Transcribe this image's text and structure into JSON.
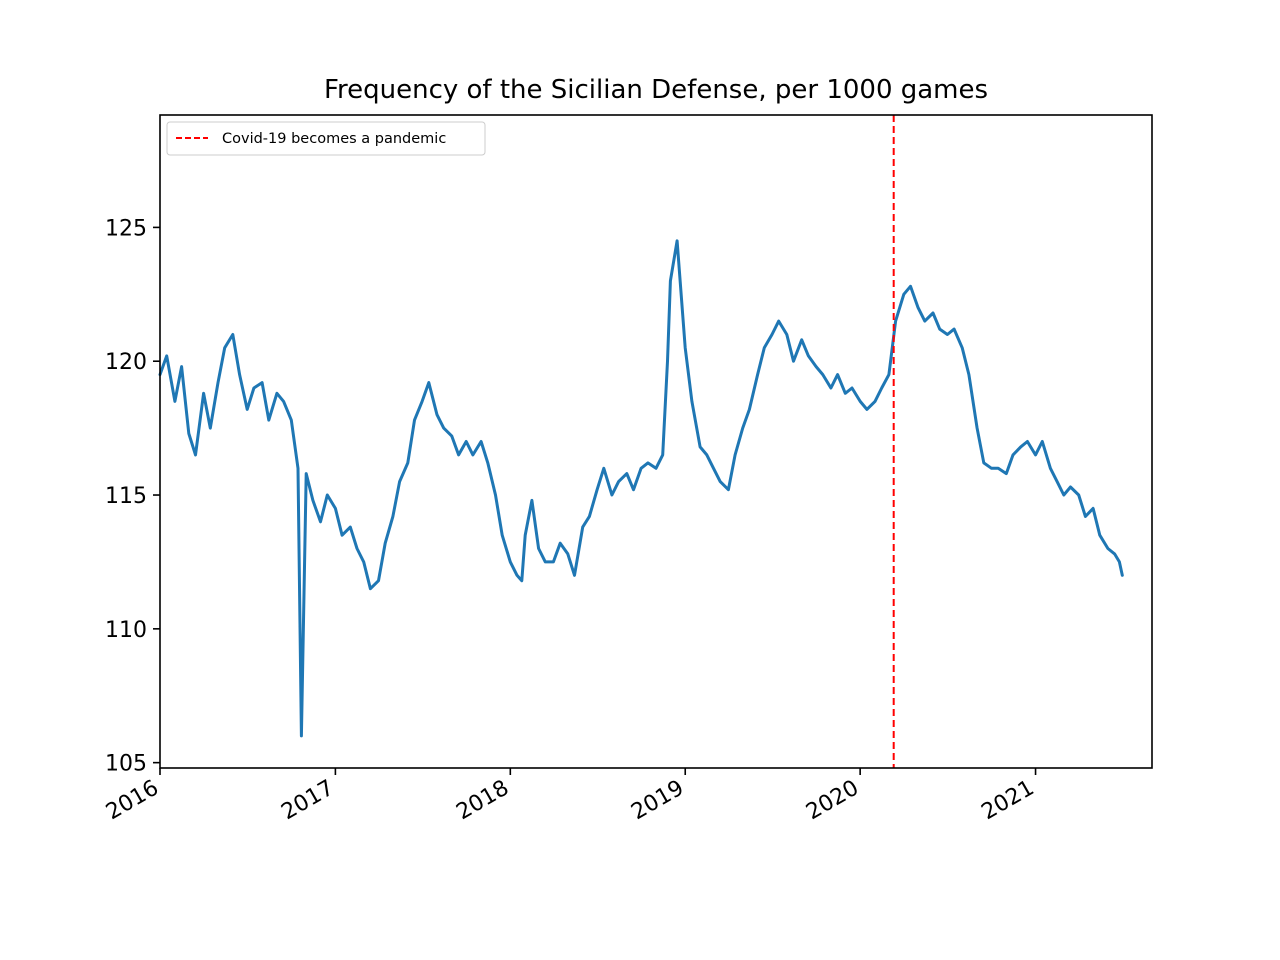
{
  "chart_data": {
    "type": "line",
    "title": "Frequency of the Sicilian Defense, per 1000 games",
    "xlabel": "",
    "ylabel": "",
    "x_axis": "date",
    "x_range": [
      "2016-01-01",
      "2021-09-01"
    ],
    "ylim": [
      104.8,
      129.2
    ],
    "grid": false,
    "legend_position": "top-left",
    "x_ticks": [
      {
        "label": "2016",
        "value": "2016-01-01"
      },
      {
        "label": "2017",
        "value": "2017-01-01"
      },
      {
        "label": "2018",
        "value": "2018-01-01"
      },
      {
        "label": "2019",
        "value": "2019-01-01"
      },
      {
        "label": "2020",
        "value": "2020-01-01"
      },
      {
        "label": "2021",
        "value": "2021-01-01"
      }
    ],
    "y_ticks": [
      105,
      110,
      115,
      120,
      125
    ],
    "annotation": {
      "type": "vline",
      "x": "2020-03-11",
      "label": "Covid-19 becomes a pandemic",
      "color": "#ff0000",
      "style": "dashed"
    },
    "series": [
      {
        "color": "#1f77b4",
        "x": [
          "2016-01-01",
          "2016-01-15",
          "2016-02-01",
          "2016-02-15",
          "2016-03-01",
          "2016-03-15",
          "2016-04-01",
          "2016-04-15",
          "2016-05-01",
          "2016-05-15",
          "2016-06-01",
          "2016-06-15",
          "2016-07-01",
          "2016-07-15",
          "2016-08-01",
          "2016-08-15",
          "2016-09-01",
          "2016-09-15",
          "2016-10-01",
          "2016-10-15",
          "2016-10-22",
          "2016-11-01",
          "2016-11-15",
          "2016-12-01",
          "2016-12-15",
          "2017-01-01",
          "2017-01-15",
          "2017-02-01",
          "2017-02-15",
          "2017-03-01",
          "2017-03-15",
          "2017-04-01",
          "2017-04-15",
          "2017-05-01",
          "2017-05-15",
          "2017-06-01",
          "2017-06-15",
          "2017-07-01",
          "2017-07-15",
          "2017-08-01",
          "2017-08-15",
          "2017-09-01",
          "2017-09-15",
          "2017-10-01",
          "2017-10-15",
          "2017-11-01",
          "2017-11-15",
          "2017-12-01",
          "2017-12-15",
          "2018-01-01",
          "2018-01-15",
          "2018-01-25",
          "2018-02-01",
          "2018-02-15",
          "2018-03-01",
          "2018-03-15",
          "2018-04-01",
          "2018-04-15",
          "2018-05-01",
          "2018-05-15",
          "2018-06-01",
          "2018-06-15",
          "2018-07-01",
          "2018-07-15",
          "2018-08-01",
          "2018-08-15",
          "2018-09-01",
          "2018-09-15",
          "2018-10-01",
          "2018-10-15",
          "2018-11-01",
          "2018-11-15",
          "2018-11-25",
          "2018-12-01",
          "2018-12-15",
          "2019-01-01",
          "2019-01-15",
          "2019-02-01",
          "2019-02-15",
          "2019-03-01",
          "2019-03-15",
          "2019-04-01",
          "2019-04-15",
          "2019-05-01",
          "2019-05-15",
          "2019-06-01",
          "2019-06-15",
          "2019-07-01",
          "2019-07-15",
          "2019-08-01",
          "2019-08-15",
          "2019-09-01",
          "2019-09-15",
          "2019-10-01",
          "2019-10-15",
          "2019-11-01",
          "2019-11-15",
          "2019-12-01",
          "2019-12-15",
          "2020-01-01",
          "2020-01-15",
          "2020-02-01",
          "2020-02-15",
          "2020-03-01",
          "2020-03-15",
          "2020-04-01",
          "2020-04-15",
          "2020-05-01",
          "2020-05-15",
          "2020-06-01",
          "2020-06-15",
          "2020-07-01",
          "2020-07-15",
          "2020-08-01",
          "2020-08-15",
          "2020-09-01",
          "2020-09-15",
          "2020-10-01",
          "2020-10-15",
          "2020-11-01",
          "2020-11-15",
          "2020-12-01",
          "2020-12-15",
          "2021-01-01",
          "2021-01-15",
          "2021-02-01",
          "2021-02-15",
          "2021-03-01",
          "2021-03-15",
          "2021-04-01",
          "2021-04-15",
          "2021-05-01",
          "2021-05-15",
          "2021-06-01",
          "2021-06-15",
          "2021-06-25",
          "2021-07-01"
        ],
        "values": [
          119.5,
          120.2,
          118.5,
          119.8,
          117.3,
          116.5,
          118.8,
          117.5,
          119.2,
          120.5,
          121.0,
          119.5,
          118.2,
          119.0,
          119.2,
          117.8,
          118.8,
          118.5,
          117.8,
          116.0,
          106.0,
          115.8,
          114.8,
          114.0,
          115.0,
          114.5,
          113.5,
          113.8,
          113.0,
          112.5,
          111.5,
          111.8,
          113.2,
          114.2,
          115.5,
          116.2,
          117.8,
          118.5,
          119.2,
          118.0,
          117.5,
          117.2,
          116.5,
          117.0,
          116.5,
          117.0,
          116.2,
          115.0,
          113.5,
          112.5,
          112.0,
          111.8,
          113.5,
          114.8,
          113.0,
          112.5,
          112.5,
          113.2,
          112.8,
          112.0,
          113.8,
          114.2,
          115.2,
          116.0,
          115.0,
          115.5,
          115.8,
          115.2,
          116.0,
          116.2,
          116.0,
          116.5,
          120.0,
          123.0,
          124.5,
          120.5,
          118.5,
          116.8,
          116.5,
          116.0,
          115.5,
          115.2,
          116.5,
          117.5,
          118.2,
          119.5,
          120.5,
          121.0,
          121.5,
          121.0,
          120.0,
          120.8,
          120.2,
          119.8,
          119.5,
          119.0,
          119.5,
          118.8,
          119.0,
          118.5,
          118.2,
          118.5,
          119.0,
          119.5,
          121.5,
          122.5,
          122.8,
          122.0,
          121.5,
          121.8,
          121.2,
          121.0,
          121.2,
          120.5,
          119.5,
          117.5,
          116.2,
          116.0,
          116.0,
          115.8,
          116.5,
          116.8,
          117.0,
          116.5,
          117.0,
          116.0,
          115.5,
          115.0,
          115.3,
          115.0,
          114.2,
          114.5,
          113.5,
          113.0,
          112.8,
          112.5,
          112.0
        ]
      }
    ]
  }
}
